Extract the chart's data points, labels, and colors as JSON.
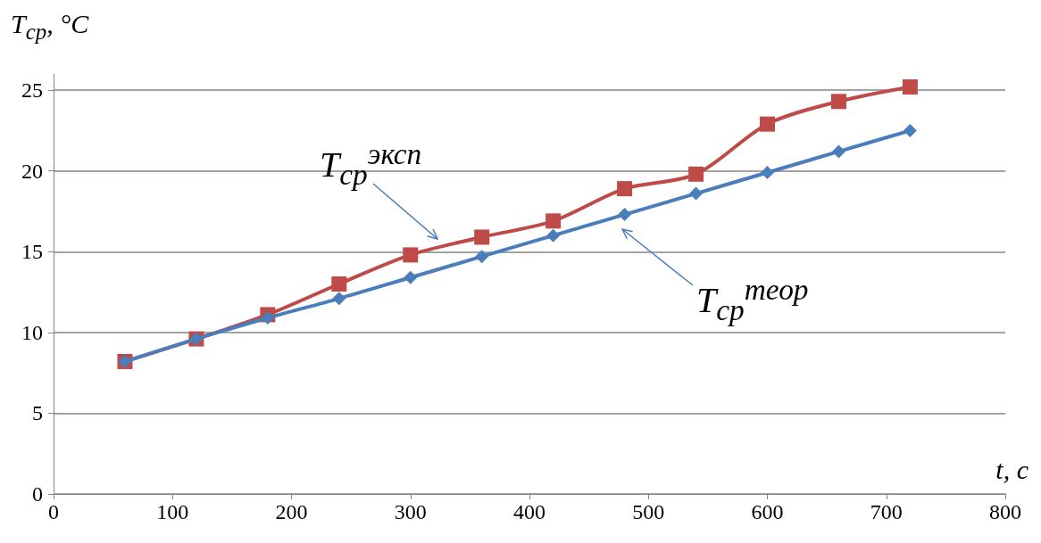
{
  "chart_data": {
    "type": "line",
    "xlabel": "t, с",
    "ylabel": "T$_{ср}$, °C",
    "x": [
      60,
      120,
      180,
      240,
      300,
      360,
      420,
      480,
      540,
      600,
      660,
      720
    ],
    "series": [
      {
        "color": "#4a7ebb",
        "marker": "diamond",
        "values": [
          8.2,
          9.6,
          10.9,
          12.1,
          13.4,
          14.7,
          16.0,
          17.3,
          18.6,
          19.9,
          21.2,
          22.5
        ]
      },
      {
        "color": "#be4b48",
        "marker": "square",
        "values": [
          8.2,
          9.6,
          11.1,
          13.0,
          14.8,
          15.9,
          16.9,
          18.9,
          19.8,
          22.9,
          24.3,
          25.2
        ]
      }
    ],
    "annotations": [
      "T$_{ср}$$^{эксп}$",
      "T$_{ср}$$^{теор}$"
    ],
    "xlim": [
      0,
      800
    ],
    "xticks": [
      0,
      100,
      200,
      300,
      400,
      500,
      600,
      700,
      800
    ],
    "ylim": [
      0,
      26
    ],
    "yticks": [
      0,
      5,
      10,
      15,
      20,
      25
    ],
    "grid": "y"
  }
}
